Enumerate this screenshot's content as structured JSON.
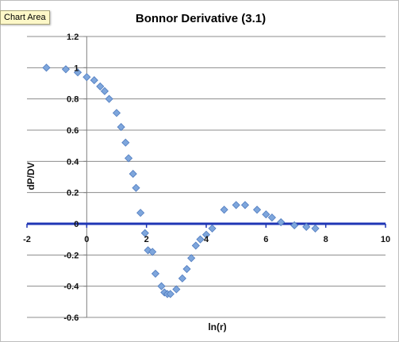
{
  "tooltip": {
    "text": "Chart Area"
  },
  "chart_data": {
    "type": "scatter",
    "title": "Bonnor Derivative (3.1)",
    "xlabel": "ln(r)",
    "ylabel": "dP/DV",
    "xlim": [
      -2,
      10
    ],
    "ylim": [
      -0.6,
      1.2
    ],
    "x_ticks": [
      "-2",
      "0",
      "2",
      "4",
      "6",
      "8",
      "10"
    ],
    "y_ticks": [
      "1.2",
      "1",
      "0.8",
      "0.6",
      "0.4",
      "0.2",
      "0",
      "-0.2",
      "-0.4",
      "-0.6"
    ],
    "x_tick_values": [
      -2,
      0,
      2,
      4,
      6,
      8,
      10
    ],
    "y_tick_values": [
      1.2,
      1,
      0.8,
      0.6,
      0.4,
      0.2,
      0,
      -0.2,
      -0.4,
      -0.6
    ],
    "grid": true,
    "legend": "none",
    "colors": {
      "marker": "#7ea6dc",
      "marker_edge": "#4f7bbf",
      "zero_line": "#1f36b5",
      "grid": "#8c8c8c"
    },
    "series": [
      {
        "x": [
          -1.35,
          -0.7,
          -0.3,
          0,
          0.25,
          0.45,
          0.6,
          0.75,
          1.0,
          1.15,
          1.3,
          1.4,
          1.55,
          1.65,
          1.8,
          1.95,
          2.05,
          2.2,
          2.3,
          2.5,
          2.6,
          2.7,
          2.8,
          3.0,
          3.2,
          3.35,
          3.5,
          3.65,
          3.8,
          4.0,
          4.2,
          4.6,
          5.0,
          5.3,
          5.7,
          6.0,
          6.2,
          6.5,
          6.95,
          7.35,
          7.65
        ],
        "y": [
          1.0,
          0.99,
          0.97,
          0.94,
          0.92,
          0.88,
          0.85,
          0.8,
          0.71,
          0.62,
          0.52,
          0.42,
          0.32,
          0.23,
          0.07,
          -0.06,
          -0.17,
          -0.18,
          -0.32,
          -0.4,
          -0.44,
          -0.45,
          -0.45,
          -0.42,
          -0.35,
          -0.29,
          -0.22,
          -0.14,
          -0.1,
          -0.07,
          -0.03,
          0.09,
          0.12,
          0.12,
          0.09,
          0.06,
          0.04,
          0.01,
          -0.01,
          -0.02,
          -0.03
        ]
      }
    ]
  }
}
